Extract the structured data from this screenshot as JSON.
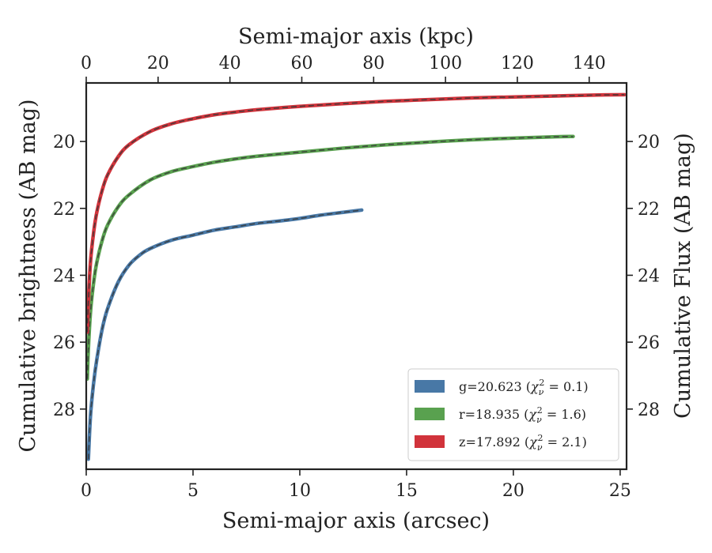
{
  "chart_data": {
    "type": "line",
    "xlabel": "Semi-major axis (arcsec)",
    "x2label": "Semi-major axis (kpc)",
    "ylabel": "Cumulative brightness (AB mag)",
    "y2label": "Cumulative Flux (AB mag)",
    "xlim": [
      0,
      25.3
    ],
    "x2lim": [
      0,
      150.4
    ],
    "ylim": [
      29.8,
      18.25
    ],
    "y_inverted": true,
    "x_ticks": [
      "0",
      "5",
      "10",
      "15",
      "20",
      "25"
    ],
    "x2_ticks": [
      "0",
      "20",
      "40",
      "60",
      "80",
      "100",
      "120",
      "140"
    ],
    "y_ticks": [
      "20",
      "22",
      "24",
      "26",
      "28"
    ],
    "y2_ticks": [
      "20",
      "22",
      "24",
      "26",
      "28"
    ],
    "grid": false,
    "legend_position": "lower-right",
    "series": [
      {
        "name": "g",
        "legend_value": "20.623",
        "legend_chi": "0.1",
        "color": "#4878a6",
        "x": [
          0.1,
          0.2,
          0.35,
          0.5,
          0.75,
          1.0,
          1.5,
          2.0,
          2.5,
          3.0,
          4.0,
          5.0,
          6.0,
          7.0,
          8.0,
          9.0,
          10.0,
          11.0,
          12.0,
          12.9
        ],
        "y": [
          29.5,
          28.2,
          27.2,
          26.5,
          25.6,
          25.0,
          24.2,
          23.7,
          23.4,
          23.2,
          22.95,
          22.8,
          22.65,
          22.55,
          22.45,
          22.38,
          22.3,
          22.2,
          22.12,
          22.05
        ]
      },
      {
        "name": "r",
        "legend_value": "18.935",
        "legend_chi": "1.6",
        "color": "#59a14f",
        "x": [
          0.05,
          0.1,
          0.2,
          0.35,
          0.5,
          0.75,
          1.0,
          1.5,
          2.0,
          3.0,
          4.0,
          5.0,
          6.0,
          7.0,
          8.0,
          10.0,
          12.0,
          14.0,
          16.0,
          18.0,
          20.0,
          22.0,
          22.8
        ],
        "y": [
          27.1,
          26.2,
          25.1,
          24.2,
          23.6,
          22.95,
          22.5,
          21.95,
          21.6,
          21.15,
          20.9,
          20.75,
          20.62,
          20.52,
          20.44,
          20.32,
          20.2,
          20.1,
          20.02,
          19.95,
          19.9,
          19.86,
          19.85
        ]
      },
      {
        "name": "z",
        "legend_value": "17.892",
        "legend_chi": "2.1",
        "color": "#d1333b",
        "x": [
          0.05,
          0.1,
          0.2,
          0.35,
          0.5,
          0.75,
          1.0,
          1.5,
          2.0,
          3.0,
          4.0,
          5.0,
          6.0,
          7.0,
          8.0,
          10.0,
          12.0,
          14.0,
          16.0,
          18.0,
          20.0,
          22.0,
          24.0,
          25.2
        ],
        "y": [
          25.7,
          24.8,
          23.6,
          22.7,
          22.1,
          21.45,
          21.0,
          20.45,
          20.1,
          19.7,
          19.47,
          19.32,
          19.2,
          19.12,
          19.05,
          18.95,
          18.87,
          18.8,
          18.75,
          18.7,
          18.67,
          18.64,
          18.61,
          18.6
        ]
      }
    ]
  }
}
